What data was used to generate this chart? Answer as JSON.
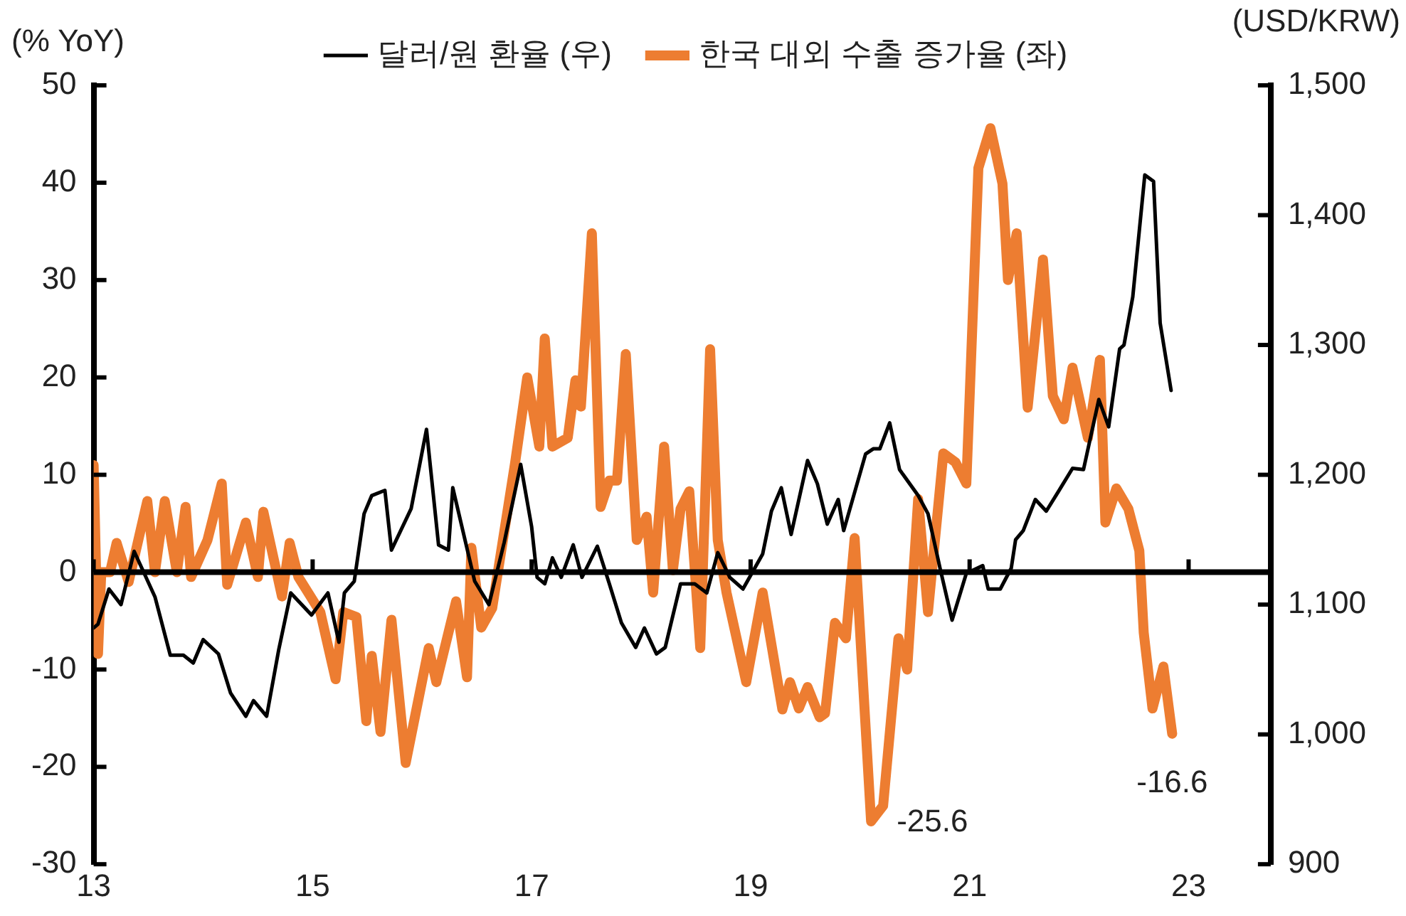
{
  "chart_data": {
    "type": "line",
    "ylabel": "(% YoY)",
    "y2label": "(USD/KRW)",
    "legend": "top",
    "xlim": [
      2013,
      2023.75
    ],
    "xticks": [
      {
        "value": 2013,
        "label": "13"
      },
      {
        "value": 2015,
        "label": "15"
      },
      {
        "value": 2017,
        "label": "17"
      },
      {
        "value": 2019,
        "label": "19"
      },
      {
        "value": 2021,
        "label": "21"
      },
      {
        "value": 2023,
        "label": "23"
      }
    ],
    "ylim": [
      -30,
      50
    ],
    "yticks": [
      -30,
      -20,
      -10,
      0,
      10,
      20,
      30,
      40,
      50
    ],
    "y2lim": [
      900,
      1500
    ],
    "y2ticks": [
      {
        "value": 900,
        "label": "900"
      },
      {
        "value": 1000,
        "label": "1,000"
      },
      {
        "value": 1100,
        "label": "1,100"
      },
      {
        "value": 1200,
        "label": "1,200"
      },
      {
        "value": 1300,
        "label": "1,300"
      },
      {
        "value": 1400,
        "label": "1,400"
      },
      {
        "value": 1500,
        "label": "1,500"
      }
    ],
    "grid": false,
    "ref_lines": [
      {
        "axis": "y",
        "value": 0,
        "color": "#000000"
      }
    ],
    "annotations": [
      {
        "text": "-25.6",
        "x": 2020.1,
        "y": -25.6
      },
      {
        "text": "-16.6",
        "x": 2022.85,
        "y": -16.6
      }
    ],
    "series": [
      {
        "name": "한국 대외 수출 증가율 (좌)",
        "color": "#ed7d31",
        "x": [
          2013.0,
          2013.04,
          2013.07,
          2013.15,
          2013.21,
          2013.32,
          2013.49,
          2013.56,
          2013.65,
          2013.76,
          2013.84,
          2013.89,
          2014.04,
          2014.17,
          2014.22,
          2014.39,
          2014.5,
          2014.55,
          2014.72,
          2014.79,
          2014.87,
          2015.07,
          2015.21,
          2015.28,
          2015.4,
          2015.49,
          2015.54,
          2015.62,
          2015.72,
          2015.85,
          2016.06,
          2016.13,
          2016.31,
          2016.41,
          2016.45,
          2016.54,
          2016.64,
          2016.85,
          2016.96,
          2017.07,
          2017.12,
          2017.19,
          2017.33,
          2017.4,
          2017.45,
          2017.55,
          2017.63,
          2017.71,
          2017.78,
          2017.86,
          2017.96,
          2018.05,
          2018.11,
          2018.21,
          2018.29,
          2018.36,
          2018.44,
          2018.54,
          2018.63,
          2018.7,
          2018.78,
          2018.96,
          2019.11,
          2019.29,
          2019.36,
          2019.44,
          2019.52,
          2019.63,
          2019.68,
          2019.77,
          2019.87,
          2019.95,
          2020.1,
          2020.21,
          2020.35,
          2020.43,
          2020.53,
          2020.62,
          2020.76,
          2020.87,
          2020.97,
          2021.08,
          2021.19,
          2021.3,
          2021.35,
          2021.43,
          2021.53,
          2021.67,
          2021.76,
          2021.86,
          2021.94,
          2022.08,
          2022.19,
          2022.24,
          2022.34,
          2022.45,
          2022.55,
          2022.59,
          2022.67,
          2022.77,
          2022.85
        ],
        "values": [
          11,
          -8.4,
          0,
          0,
          3,
          -1,
          7.3,
          0,
          7.3,
          0,
          6.7,
          -0.5,
          3.3,
          9.1,
          -1.3,
          5.1,
          -0.5,
          6.2,
          -2.5,
          3,
          -0.5,
          -4.1,
          -11,
          -4.1,
          -4.6,
          -15.3,
          -8.6,
          -16.4,
          -4.9,
          -19.6,
          -7.8,
          -11.3,
          -3,
          -10.8,
          2.5,
          -5.7,
          -3.7,
          11.3,
          20,
          12.9,
          24,
          12.9,
          13.8,
          19.7,
          17,
          34.8,
          6.7,
          9.4,
          9.4,
          22.4,
          3.3,
          5.7,
          -2.1,
          12.9,
          0.2,
          6.5,
          8.3,
          -7.8,
          22.9,
          3.3,
          -2.1,
          -11.3,
          -2.1,
          -14.1,
          -11.3,
          -14,
          -11.8,
          -14.9,
          -14.5,
          -5.2,
          -6.8,
          3.5,
          -25.6,
          -24,
          -6.8,
          -10,
          7.5,
          -4.1,
          12.2,
          11.3,
          9.1,
          41.5,
          45.6,
          39.9,
          30,
          34.8,
          16.9,
          32.1,
          18.1,
          15.7,
          21,
          13.8,
          21.8,
          5.1,
          8.6,
          6.5,
          2.2,
          -6.2,
          -14,
          -9.7,
          -16.6
        ]
      },
      {
        "name": "달러/원 환율 (우)",
        "color": "#000000",
        "axis": "y2",
        "x": [
          2013.0,
          2013.04,
          2013.14,
          2013.25,
          2013.37,
          2013.56,
          2013.7,
          2013.82,
          2013.91,
          2014.0,
          2014.14,
          2014.25,
          2014.39,
          2014.46,
          2014.58,
          2014.69,
          2014.8,
          2014.99,
          2015.14,
          2015.24,
          2015.29,
          2015.38,
          2015.47,
          2015.54,
          2015.66,
          2015.72,
          2015.9,
          2016.04,
          2016.15,
          2016.24,
          2016.28,
          2016.48,
          2016.61,
          2016.75,
          2016.9,
          2017.0,
          2017.05,
          2017.12,
          2017.19,
          2017.27,
          2017.38,
          2017.46,
          2017.6,
          2017.71,
          2017.82,
          2017.95,
          2018.03,
          2018.14,
          2018.22,
          2018.36,
          2018.49,
          2018.6,
          2018.7,
          2018.81,
          2018.93,
          2019.11,
          2019.19,
          2019.28,
          2019.37,
          2019.52,
          2019.61,
          2019.7,
          2019.8,
          2019.85,
          2020.05,
          2020.12,
          2020.18,
          2020.27,
          2020.36,
          2020.53,
          2020.62,
          2020.73,
          2020.84,
          2020.97,
          2021.12,
          2021.17,
          2021.28,
          2021.38,
          2021.42,
          2021.49,
          2021.6,
          2021.7,
          2021.81,
          2021.94,
          2022.04,
          2022.18,
          2022.27,
          2022.37,
          2022.41,
          2022.49,
          2022.6,
          2022.68,
          2022.74,
          2022.84
        ],
        "values": [
          1082,
          1085,
          1112,
          1100,
          1141,
          1106,
          1061,
          1061,
          1055,
          1073,
          1062,
          1032,
          1014,
          1026,
          1014,
          1065,
          1109,
          1092,
          1109,
          1071,
          1109,
          1118,
          1170,
          1184,
          1188,
          1142,
          1174,
          1235,
          1146,
          1142,
          1190,
          1118,
          1100,
          1148,
          1208,
          1160,
          1121,
          1116,
          1136,
          1121,
          1146,
          1121,
          1145,
          1116,
          1086,
          1067,
          1082,
          1062,
          1067,
          1116,
          1116,
          1109,
          1140,
          1121,
          1112,
          1139,
          1172,
          1190,
          1154,
          1211,
          1193,
          1162,
          1181,
          1157,
          1216,
          1220,
          1220,
          1240,
          1204,
          1184,
          1170,
          1128,
          1088,
          1124,
          1130,
          1112,
          1112,
          1128,
          1150,
          1157,
          1181,
          1172,
          1187,
          1205,
          1204,
          1258,
          1237,
          1297,
          1300,
          1337,
          1431,
          1426,
          1317,
          1265
        ]
      }
    ]
  }
}
